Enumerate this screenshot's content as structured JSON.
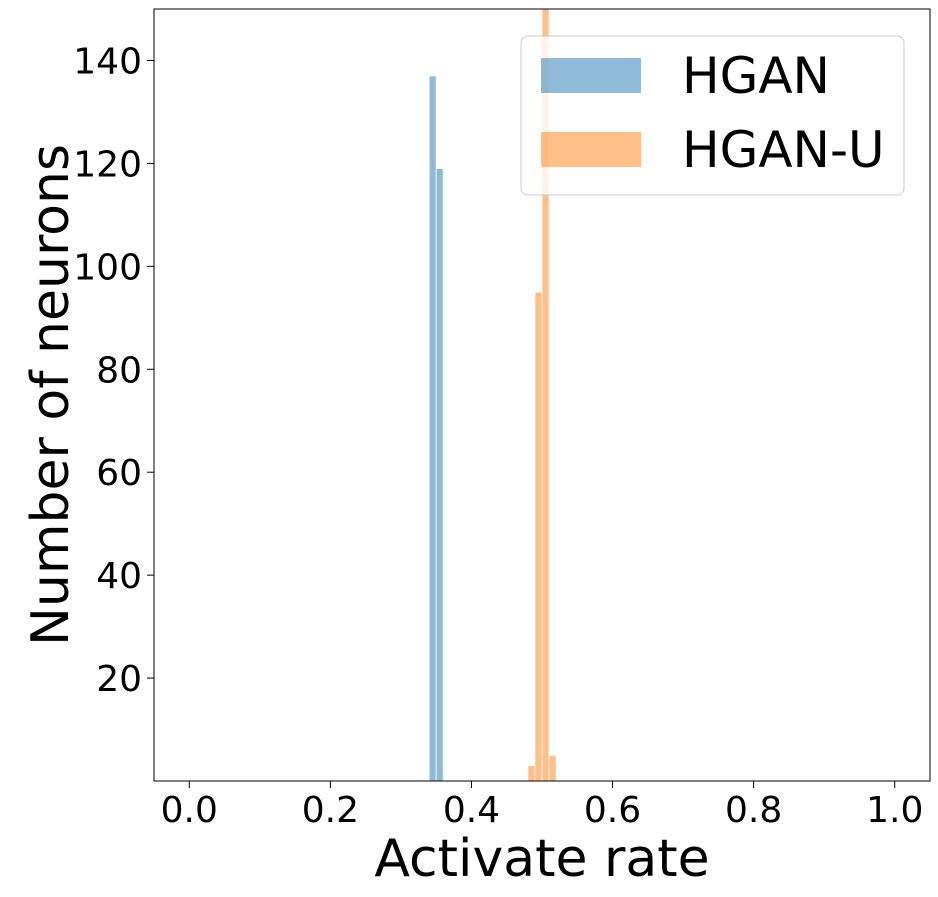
{
  "chart_data": {
    "type": "bar",
    "title": "",
    "xlabel": "Activate rate",
    "ylabel": "Number of neurons",
    "xlim": [
      -0.05,
      1.05
    ],
    "ylim": [
      0,
      150
    ],
    "xticks": [
      "0.0",
      "0.2",
      "0.4",
      "0.6",
      "0.8",
      "1.0"
    ],
    "xtick_values": [
      0.0,
      0.2,
      0.4,
      0.6,
      0.8,
      1.0
    ],
    "yticks": [
      "20",
      "40",
      "60",
      "80",
      "100",
      "120",
      "140"
    ],
    "ytick_values": [
      20,
      40,
      60,
      80,
      100,
      120,
      140
    ],
    "grid": false,
    "legend_position": "top-right",
    "bin_width": 0.01,
    "series": [
      {
        "name": "HGAN",
        "color": "#1f77b4",
        "opacity": 0.5,
        "bins": [
          {
            "start": 0.34,
            "count": 137
          },
          {
            "start": 0.35,
            "count": 119
          }
        ]
      },
      {
        "name": "HGAN-U",
        "color": "#ff7f0e",
        "opacity": 0.5,
        "bins": [
          {
            "start": 0.48,
            "count": 3
          },
          {
            "start": 0.49,
            "count": 95
          },
          {
            "start": 0.5,
            "count": 153
          },
          {
            "start": 0.51,
            "count": 5
          }
        ]
      }
    ]
  }
}
